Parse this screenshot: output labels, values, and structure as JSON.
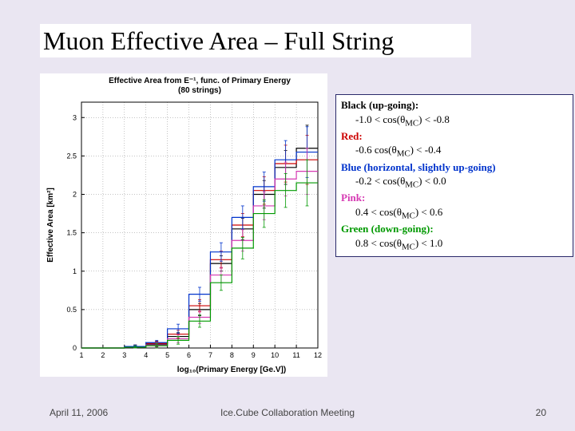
{
  "slide": {
    "title": "Muon Effective Area – Full String",
    "background": "#eae6f2",
    "titlebar_bg": "#ffffff",
    "title_fontsize": 32,
    "title_color": "#000000"
  },
  "chart": {
    "type": "step-histogram",
    "title_line1": "Effective Area from E⁻¹, func. of Primary Energy",
    "title_line2": "(80 strings)",
    "title_fontsize": 10,
    "xlabel": "log₁₀(Primary Energy [Ge.V])",
    "ylabel": "Effective Area [km²]",
    "ylabel_rotated": true,
    "axis_fontsize": 10,
    "tick_fontsize": 9,
    "xlim": [
      1,
      12
    ],
    "ylim": [
      0,
      3.2
    ],
    "xticks": [
      1,
      2,
      3,
      4,
      5,
      6,
      7,
      8,
      9,
      10,
      11,
      12
    ],
    "yticks": [
      0,
      0.5,
      1,
      1.5,
      2,
      2.5,
      3
    ],
    "grid": true,
    "grid_style": "dotted",
    "grid_color": "#888888",
    "background": "#ffffff",
    "axis_color": "#000000",
    "line_width": 1.2,
    "error_bars": true,
    "series": [
      {
        "name": "black_upgoing",
        "color": "#000000",
        "label": "-1.0 < cos(θ_MC) < -0.8",
        "bin_edges": [
          1,
          2,
          3,
          4,
          5,
          6,
          7,
          8,
          9,
          10,
          11,
          12
        ],
        "values": [
          0.0,
          0.0,
          0.02,
          0.05,
          0.15,
          0.5,
          1.1,
          1.55,
          2.0,
          2.35,
          2.6
        ],
        "yerr": [
          0.0,
          0.0,
          0.02,
          0.03,
          0.05,
          0.08,
          0.1,
          0.14,
          0.18,
          0.22,
          0.3
        ]
      },
      {
        "name": "red",
        "color": "#cc0000",
        "label": "-0.6 < cos(θ_MC) < -0.4",
        "bin_edges": [
          1,
          2,
          3,
          4,
          5,
          6,
          7,
          8,
          9,
          10,
          11,
          12
        ],
        "values": [
          0.0,
          0.0,
          0.02,
          0.06,
          0.18,
          0.55,
          1.15,
          1.6,
          2.05,
          2.4,
          2.45
        ],
        "yerr": [
          0.0,
          0.0,
          0.02,
          0.03,
          0.05,
          0.08,
          0.11,
          0.15,
          0.18,
          0.24,
          0.32
        ]
      },
      {
        "name": "blue_horizontal",
        "color": "#0033cc",
        "label": "-0.2 < cos(θ_MC) < 0.0",
        "bin_edges": [
          1,
          2,
          3,
          4,
          5,
          6,
          7,
          8,
          9,
          10,
          11,
          12
        ],
        "values": [
          0.0,
          0.0,
          0.02,
          0.07,
          0.25,
          0.7,
          1.25,
          1.7,
          2.1,
          2.45,
          2.55
        ],
        "yerr": [
          0.0,
          0.0,
          0.02,
          0.03,
          0.06,
          0.09,
          0.12,
          0.15,
          0.19,
          0.25,
          0.33
        ]
      },
      {
        "name": "pink",
        "color": "#d63ab3",
        "label": "0.4 < cos(θ_MC) < 0.6",
        "bin_edges": [
          1,
          2,
          3,
          4,
          5,
          6,
          7,
          8,
          9,
          10,
          11,
          12
        ],
        "values": [
          0.0,
          0.0,
          0.01,
          0.04,
          0.12,
          0.4,
          0.95,
          1.4,
          1.85,
          2.2,
          2.3
        ],
        "yerr": [
          0.0,
          0.0,
          0.02,
          0.03,
          0.05,
          0.08,
          0.1,
          0.14,
          0.18,
          0.22,
          0.3
        ]
      },
      {
        "name": "green_downgoing",
        "color": "#009900",
        "label": "0.8 < cos(θ_MC) < 1.0",
        "bin_edges": [
          1,
          2,
          3,
          4,
          5,
          6,
          7,
          8,
          9,
          10,
          11,
          12
        ],
        "values": [
          0.0,
          0.0,
          0.01,
          0.03,
          0.1,
          0.35,
          0.85,
          1.3,
          1.75,
          2.05,
          2.15
        ],
        "yerr": [
          0.0,
          0.0,
          0.02,
          0.03,
          0.05,
          0.08,
          0.1,
          0.14,
          0.18,
          0.22,
          0.3
        ]
      }
    ]
  },
  "legend_panel": {
    "border_color": "#2a2a6a",
    "background": "#ffffff",
    "fontsize": 13,
    "entries": [
      {
        "header": "Black (up-going):",
        "header_color": "#000000",
        "range": "-1.0 < cos(θ",
        "sub": "MC",
        "range_tail": ") < -0.8"
      },
      {
        "header": "Red:",
        "header_color": "#cc0000",
        "range": "-0.6 cos(θ",
        "sub": "MC",
        "range_tail": ") < -0.4"
      },
      {
        "header": "Blue (horizontal, slightly up-going)",
        "header_color": "#0033cc",
        "range": "-0.2 < cos(θ",
        "sub": "MC",
        "range_tail": ") <  0.0"
      },
      {
        "header": "Pink:",
        "header_color": "#d63ab3",
        "range": "0.4 < cos(θ",
        "sub": "MC",
        "range_tail": ") < 0.6"
      },
      {
        "header": "Green (down-going):",
        "header_color": "#009900",
        "range": "0.8 < cos(θ",
        "sub": "MC",
        "range_tail": ") < 1.0"
      }
    ]
  },
  "footer": {
    "date": "April 11, 2006",
    "center": "Ice.Cube Collaboration Meeting",
    "page_number": "20",
    "fontsize": 12,
    "color": "#444444"
  }
}
